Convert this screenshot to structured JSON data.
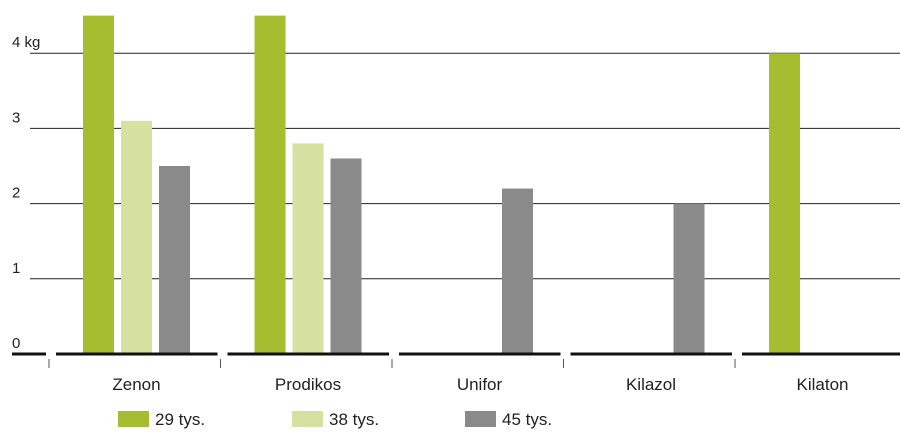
{
  "chart_data": {
    "type": "bar",
    "categories": [
      "Zenon",
      "Prodikos",
      "Unifor",
      "Kilazol",
      "Kilaton"
    ],
    "series": [
      {
        "name": "29 tys.",
        "color": "#a6bd2f",
        "values": [
          4.5,
          4.5,
          null,
          null,
          4.0
        ]
      },
      {
        "name": "38 tys.",
        "color": "#d6e0a1",
        "values": [
          3.1,
          2.8,
          null,
          null,
          null
        ]
      },
      {
        "name": "45 tys.",
        "color": "#8a8a8a",
        "values": [
          2.5,
          2.6,
          2.2,
          2.0,
          null
        ]
      }
    ],
    "yticks": [
      0,
      1,
      2,
      3,
      4
    ],
    "ytick_labels": [
      "0",
      "1",
      "2",
      "3",
      "4 kg"
    ],
    "ylim": [
      0,
      4.5
    ],
    "grid": true,
    "legend_position": "bottom-left"
  }
}
